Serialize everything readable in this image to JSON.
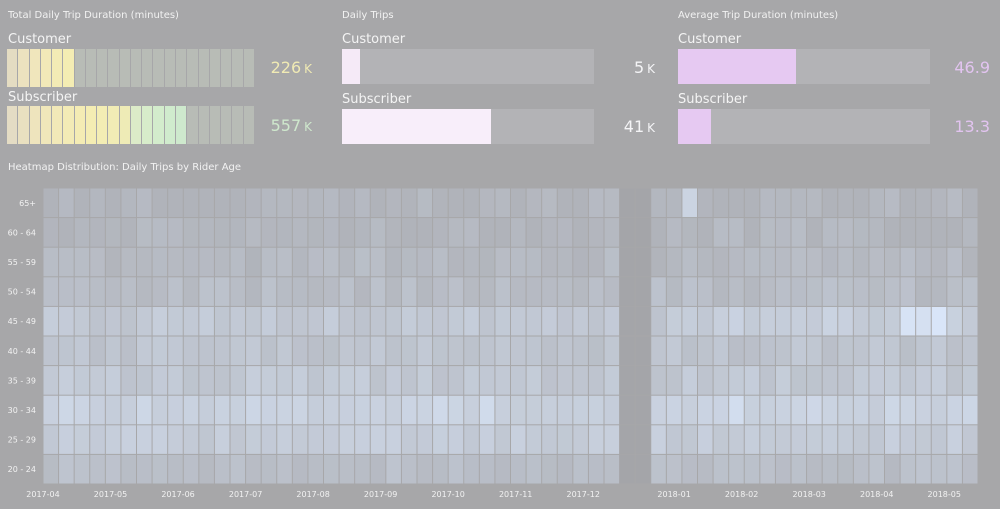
{
  "panels": {
    "total_duration": {
      "title": "Total Daily Trip Duration (minutes)",
      "rows": [
        {
          "label": "Customer",
          "value": "226",
          "unit": "K",
          "fraction": 0.29,
          "value_color": "#f0eab4"
        },
        {
          "label": "Subscriber",
          "value": "557",
          "unit": "K",
          "fraction": 0.71,
          "value_color": "#cfe8cd"
        }
      ]
    },
    "daily_trips": {
      "title": "Daily Trips",
      "rows": [
        {
          "label": "Customer",
          "value": "5",
          "unit": "K",
          "fraction": 0.07,
          "value_color": "#f4f4f6",
          "bar_color": "#f5eaf7"
        },
        {
          "label": "Subscriber",
          "value": "41",
          "unit": "K",
          "fraction": 0.59,
          "value_color": "#f4f4f6",
          "bar_color": "#f8eefa"
        }
      ]
    },
    "avg_duration": {
      "title": "Average Trip Duration (minutes)",
      "rows": [
        {
          "label": "Customer",
          "value": "46.9",
          "unit": "",
          "fraction": 0.47,
          "value_color": "#e2c4f0",
          "bar_color": "#e6c9f2"
        },
        {
          "label": "Subscriber",
          "value": "13.3",
          "unit": "",
          "fraction": 0.13,
          "value_color": "#e2c4f0",
          "bar_color": "#e6c9f2"
        }
      ]
    }
  },
  "heatmap": {
    "title": "Heatmap Distribution: Daily Trips by Rider Age"
  },
  "chart_data": {
    "type": "heatmap",
    "title": "Heatmap Distribution: Daily Trips by Rider Age",
    "y_categories": [
      "65+",
      "60 - 64",
      "55 - 59",
      "50 - 54",
      "45 - 49",
      "40 - 44",
      "35 - 39",
      "30 - 34",
      "25 - 29",
      "20 - 24"
    ],
    "x_tick_labels": [
      "2017-04",
      "2017-05",
      "2017-06",
      "2017-07",
      "2017-08",
      "2017-09",
      "2017-10",
      "2017-11",
      "2017-12",
      "2018-01",
      "2018-02",
      "2018-03",
      "2018-04",
      "2018-05"
    ],
    "weeks_before_gap": 37,
    "weeks_after_gap": 21,
    "gap_weeks": 2,
    "color_low": "#b0b3ba",
    "color_high": "#dbe8fb",
    "row_base": [
      0.05,
      0.08,
      0.12,
      0.18,
      0.4,
      0.32,
      0.4,
      0.58,
      0.46,
      0.22
    ],
    "highlights": [
      {
        "row": 0,
        "week": 41,
        "intensity": 0.62
      },
      {
        "row": 4,
        "week": 57,
        "intensity": 0.95
      },
      {
        "row": 4,
        "week": 55,
        "intensity": 0.9
      },
      {
        "row": 4,
        "week": 56,
        "intensity": 0.85
      },
      {
        "row": 7,
        "week": 44,
        "intensity": 0.8
      },
      {
        "row": 7,
        "week": 28,
        "intensity": 0.75
      },
      {
        "row": 7,
        "week": 25,
        "intensity": 0.72
      }
    ]
  }
}
